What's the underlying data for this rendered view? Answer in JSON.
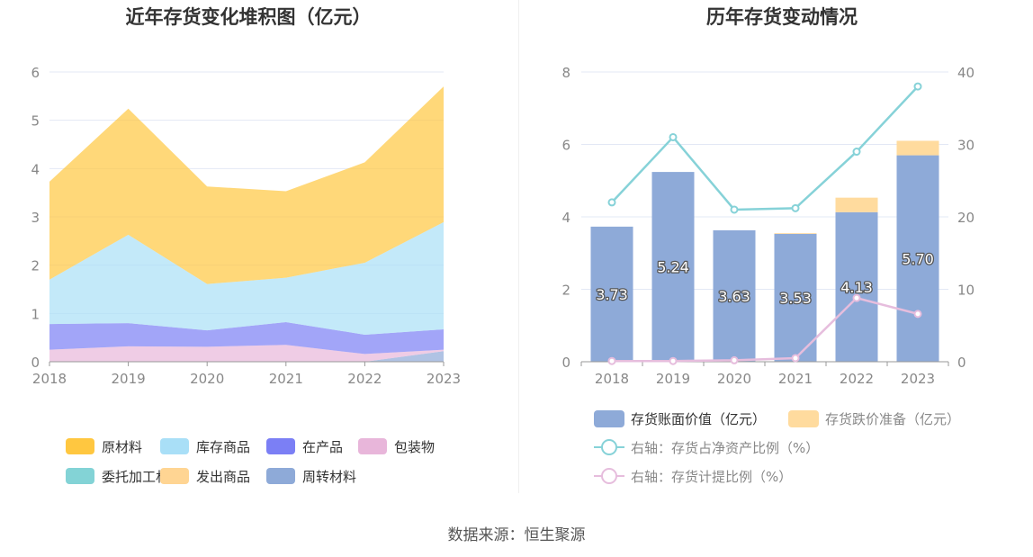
{
  "colors": {
    "raw_material": "#FFC740",
    "stock_goods": "#A9DFF7",
    "in_production": "#7B7FF5",
    "packaging": "#E8B6DA",
    "consigned": "#83D3D6",
    "shipped_goods": "#FFD593",
    "turnover_material": "#8EAAD8",
    "book_value": "#8EAAD8",
    "impairment": "#FFDB9E",
    "net_asset_ratio": "#86D2D8",
    "provision_ratio": "#E6BDDD",
    "grid": "#E3E8F5",
    "axis_text": "#888888",
    "title_text": "#333333"
  },
  "footer": {
    "source": "数据来源：恒生聚源"
  },
  "chart_data": [
    {
      "type": "area",
      "stacked": true,
      "title": "近年存货变化堆积图（亿元）",
      "x": [
        "2018",
        "2019",
        "2020",
        "2021",
        "2022",
        "2023"
      ],
      "ylim": [
        0,
        6
      ],
      "yticks": [
        "0",
        "1",
        "2",
        "3",
        "4",
        "5",
        "6"
      ],
      "grid": true,
      "legend_position": "bottom",
      "series": [
        {
          "name": "周转材料",
          "key": "turnover_material",
          "values": [
            0,
            0,
            0,
            0,
            0,
            0.22
          ]
        },
        {
          "name": "包装物",
          "key": "packaging",
          "values": [
            0.25,
            0.32,
            0.31,
            0.35,
            0.16,
            0.03
          ]
        },
        {
          "name": "在产品",
          "key": "in_production",
          "values": [
            0.53,
            0.48,
            0.34,
            0.47,
            0.4,
            0.42
          ]
        },
        {
          "name": "库存商品",
          "key": "stock_goods",
          "values": [
            0.92,
            1.83,
            0.96,
            0.92,
            1.49,
            2.22
          ]
        },
        {
          "name": "委托加工材料",
          "key": "consigned",
          "values": [
            0,
            0,
            0,
            0,
            0,
            0
          ]
        },
        {
          "name": "发出商品",
          "key": "shipped_goods",
          "values": [
            0,
            0,
            0,
            0,
            0,
            0
          ]
        },
        {
          "name": "原材料",
          "key": "raw_material",
          "values": [
            2.03,
            2.61,
            2.02,
            1.79,
            2.08,
            2.81
          ]
        }
      ],
      "legend": [
        {
          "name": "原材料",
          "key": "raw_material"
        },
        {
          "name": "库存商品",
          "key": "stock_goods"
        },
        {
          "name": "在产品",
          "key": "in_production"
        },
        {
          "name": "包装物",
          "key": "packaging"
        },
        {
          "name": "委托加工材料",
          "key": "consigned"
        },
        {
          "name": "发出商品",
          "key": "shipped_goods"
        },
        {
          "name": "周转材料",
          "key": "turnover_material"
        }
      ]
    },
    {
      "type": "bar",
      "stacked": true,
      "title": "历年存货变动情况",
      "categories": [
        "2018",
        "2019",
        "2020",
        "2021",
        "2022",
        "2023"
      ],
      "ylim": [
        0,
        8
      ],
      "yticks": [
        "0",
        "2",
        "4",
        "6",
        "8"
      ],
      "y2lim": [
        0,
        40
      ],
      "y2ticks": [
        "0",
        "10",
        "20",
        "30",
        "40"
      ],
      "grid": true,
      "legend_position": "bottom",
      "series": [
        {
          "name": "存货账面价值（亿元）",
          "key": "book_value",
          "kind": "bar",
          "values": [
            3.73,
            5.24,
            3.63,
            3.53,
            4.13,
            5.7
          ],
          "labels": [
            "3.73",
            "5.24",
            "3.63",
            "3.53",
            "4.13",
            "5.70"
          ]
        },
        {
          "name": "存货跌价准备（亿元）",
          "key": "impairment",
          "kind": "bar",
          "values": [
            0,
            0,
            0,
            0.02,
            0.4,
            0.4
          ]
        },
        {
          "name": "右轴：存货占净资产比例（%）",
          "key": "net_asset_ratio",
          "kind": "line",
          "axis": "right",
          "values": [
            22.0,
            31.0,
            21.0,
            21.2,
            29.0,
            38.0
          ]
        },
        {
          "name": "右轴：存货计提比例（%）",
          "key": "provision_ratio",
          "kind": "line",
          "axis": "right",
          "values": [
            0.1,
            0.1,
            0.2,
            0.5,
            8.8,
            6.6
          ]
        }
      ]
    }
  ]
}
